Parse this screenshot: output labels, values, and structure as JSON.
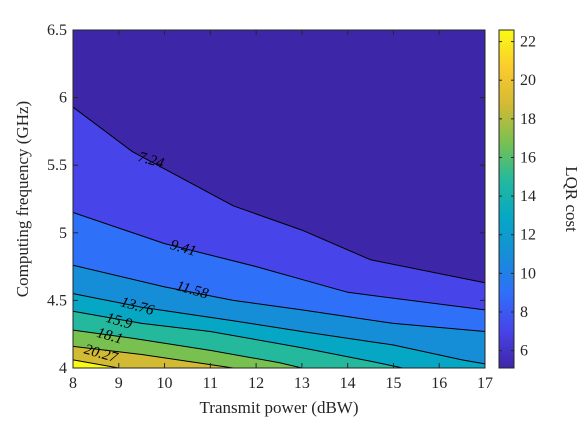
{
  "chart_data": {
    "type": "contour",
    "title": "",
    "xlabel": "Transmit power (dBW)",
    "ylabel": "Computing frequency (GHz)",
    "colorbar_label": "LQR cost",
    "xlim": [
      8,
      17
    ],
    "ylim": [
      4,
      6.5
    ],
    "xticks": [
      "8",
      "9",
      "10",
      "11",
      "12",
      "13",
      "14",
      "15",
      "16",
      "17"
    ],
    "yticks": [
      "4",
      "4.5",
      "5",
      "5.5",
      "6",
      "6.5"
    ],
    "colorbar_range": [
      5.1,
      22.6
    ],
    "colorbar_ticks": [
      "6",
      "8",
      "10",
      "12",
      "14",
      "16",
      "18",
      "20",
      "22"
    ],
    "colormap": [
      "#3e26a8",
      "#4744e9",
      "#2f70f9",
      "#168ed7",
      "#06a7c5",
      "#24b99d",
      "#78c151",
      "#d2ba35",
      "#fbcb2d",
      "#f9fb14"
    ],
    "contour_levels": [
      {
        "value": 7.24,
        "label": "7.24",
        "points": [
          [
            8,
            5.93
          ],
          [
            9.3,
            5.6
          ],
          [
            11.5,
            5.2
          ],
          [
            13,
            5.02
          ],
          [
            14.5,
            4.8
          ],
          [
            17,
            4.63
          ]
        ]
      },
      {
        "value": 9.41,
        "label": "9.41",
        "points": [
          [
            8,
            5.15
          ],
          [
            10,
            4.92
          ],
          [
            12,
            4.75
          ],
          [
            14,
            4.56
          ],
          [
            17,
            4.43
          ]
        ]
      },
      {
        "value": 11.58,
        "label": "11.58",
        "points": [
          [
            8,
            4.76
          ],
          [
            10,
            4.6
          ],
          [
            11.5,
            4.5
          ],
          [
            13,
            4.43
          ],
          [
            15,
            4.33
          ],
          [
            17,
            4.27
          ]
        ]
      },
      {
        "value": 13.76,
        "label": "13.76",
        "points": [
          [
            8,
            4.55
          ],
          [
            9.5,
            4.45
          ],
          [
            11.5,
            4.35
          ],
          [
            13,
            4.27
          ],
          [
            15,
            4.17
          ],
          [
            16.5,
            4.06
          ],
          [
            17,
            4.03
          ]
        ]
      },
      {
        "value": 15.9,
        "label": "15.9",
        "points": [
          [
            8,
            4.42
          ],
          [
            9.5,
            4.33
          ],
          [
            11,
            4.27
          ],
          [
            13,
            4.15
          ],
          [
            14.5,
            4.05
          ],
          [
            15.2,
            4
          ]
        ]
      },
      {
        "value": 18.1,
        "label": "18.1",
        "points": [
          [
            8,
            4.28
          ],
          [
            9.3,
            4.22
          ],
          [
            11,
            4.13
          ],
          [
            12.5,
            4.04
          ],
          [
            13,
            4
          ]
        ]
      },
      {
        "value": 20.27,
        "label": "20.27",
        "points": [
          [
            8,
            4.16
          ],
          [
            9.5,
            4.1
          ],
          [
            10.5,
            4.05
          ],
          [
            11.5,
            4
          ]
        ]
      },
      {
        "value": 22.4,
        "label": "",
        "points": [
          [
            8,
            4.06
          ],
          [
            9,
            4
          ]
        ]
      }
    ],
    "band_fills": [
      "#3e26a8",
      "#4744e9",
      "#2f70f9",
      "#168ed7",
      "#06a7c5",
      "#24b99d",
      "#78c151",
      "#d2ba35",
      "#f9fb14"
    ],
    "contour_label_positions": [
      {
        "label": "7.24",
        "x": 9.7,
        "y": 5.53
      },
      {
        "label": "9.41",
        "x": 10.4,
        "y": 4.88
      },
      {
        "label": "11.58",
        "x": 10.6,
        "y": 4.57
      },
      {
        "label": "13.76",
        "x": 9.4,
        "y": 4.45
      },
      {
        "label": "15.9",
        "x": 9.0,
        "y": 4.34
      },
      {
        "label": "18.1",
        "x": 8.8,
        "y": 4.23
      },
      {
        "label": "20.27",
        "x": 8.6,
        "y": 4.1
      }
    ]
  }
}
